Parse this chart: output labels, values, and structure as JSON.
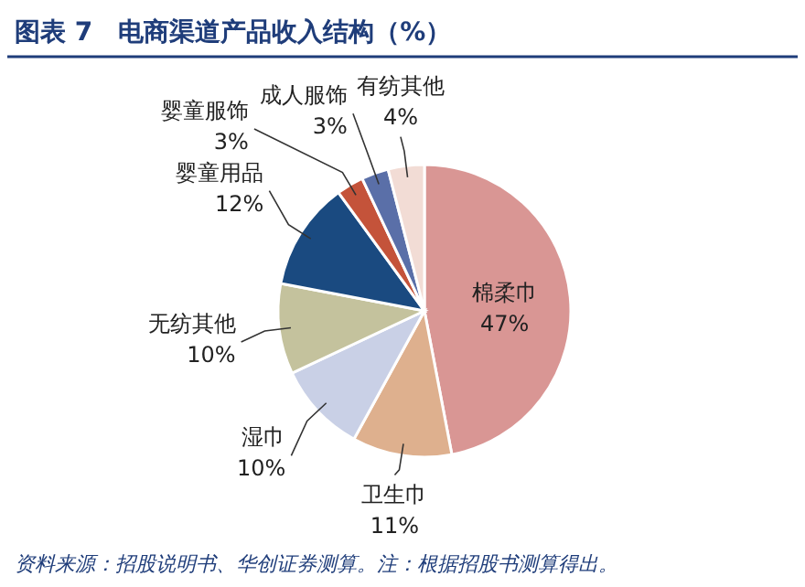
{
  "chart_data": {
    "type": "pie",
    "title": "图表 7　电商渠道产品收入结构（%）",
    "categories": [
      "棉柔巾",
      "卫生巾",
      "湿巾",
      "无纺其他",
      "婴童用品",
      "婴童服饰",
      "成人服饰",
      "有纺其他"
    ],
    "values": [
      47,
      11,
      10,
      10,
      12,
      3,
      3,
      4
    ],
    "colors": [
      "#d99694",
      "#deb08e",
      "#c9d0e6",
      "#c4c29d",
      "#1a4a80",
      "#c4533a",
      "#5a6fa8",
      "#f2dcd5"
    ],
    "value_labels": [
      "47%",
      "11%",
      "10%",
      "10%",
      "12%",
      "3%",
      "3%",
      "4%"
    ],
    "data_labels": true,
    "annotations": [
      "资料来源：招股说明书、华创证券测算。注：根据招股书测算得出。"
    ]
  }
}
